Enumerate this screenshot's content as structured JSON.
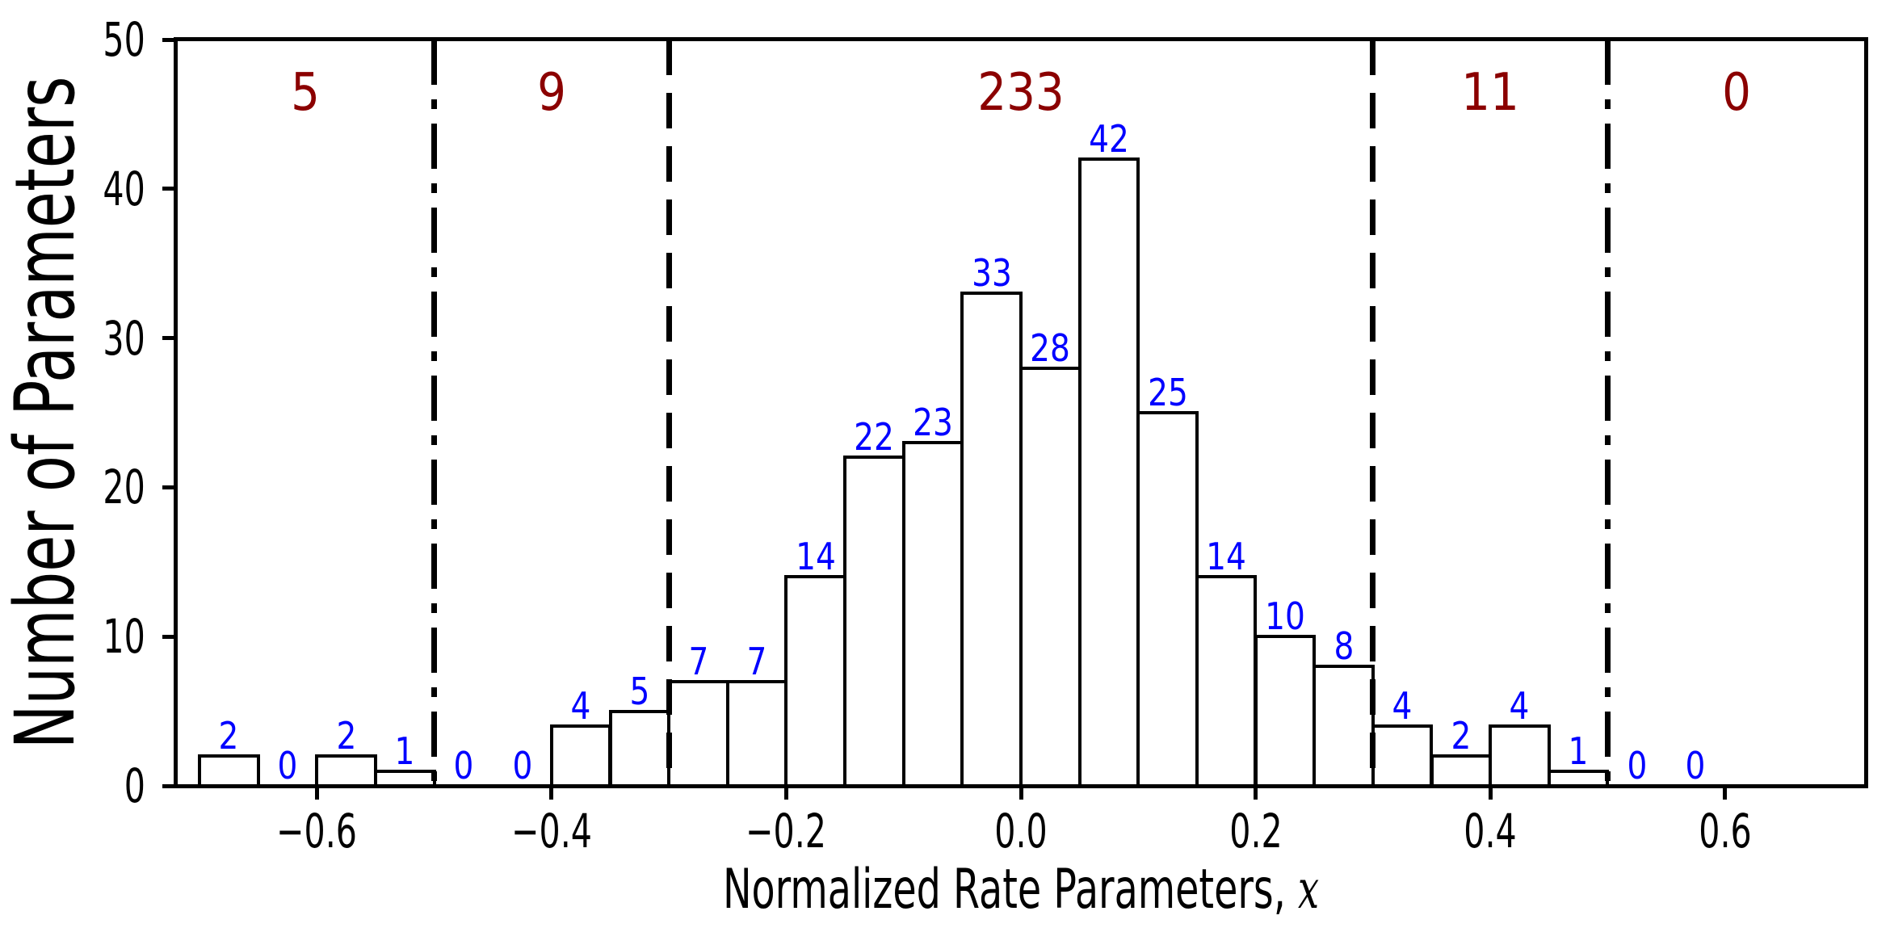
{
  "figure": {
    "background": "#ffffff"
  },
  "chart_data": {
    "type": "bar",
    "subtype": "histogram",
    "title": "",
    "xlabel_text": "Normalized Rate Parameters, ",
    "xlabel_math": "x",
    "ylabel": "Number of Parameters",
    "xlim": [
      -0.72,
      0.72
    ],
    "ylim": [
      0,
      50
    ],
    "grid": false,
    "legend": null,
    "xticks": [
      -0.6,
      -0.4,
      -0.2,
      0.0,
      0.2,
      0.4,
      0.6
    ],
    "xtick_labels": [
      "−0.6",
      "−0.4",
      "−0.2",
      "0.0",
      "0.2",
      "0.4",
      "0.6"
    ],
    "yticks": [
      0,
      10,
      20,
      30,
      40,
      50
    ],
    "ytick_labels": [
      "0",
      "10",
      "20",
      "30",
      "40",
      "50"
    ],
    "bin_start": -0.7,
    "bin_width": 0.05,
    "values": [
      2,
      0,
      2,
      1,
      0,
      0,
      4,
      5,
      7,
      7,
      14,
      22,
      23,
      33,
      28,
      42,
      25,
      14,
      10,
      8,
      4,
      2,
      4,
      1,
      0,
      0
    ],
    "bar_value_labels": [
      "2",
      "0",
      "2",
      "1",
      "0",
      "0",
      "4",
      "5",
      "7",
      "7",
      "14",
      "22",
      "23",
      "33",
      "28",
      "42",
      "25",
      "14",
      "10",
      "8",
      "4",
      "2",
      "4",
      "1",
      "0",
      "0"
    ],
    "bar_fill": "#ffffff",
    "bar_edge_color": "#000000",
    "bar_label_color": "#0000ff",
    "divider_color": "#000000",
    "dividers": [
      {
        "x": -0.5,
        "style": "dashdot"
      },
      {
        "x": -0.3,
        "style": "dashed"
      },
      {
        "x": 0.3,
        "style": "dashed"
      },
      {
        "x": 0.5,
        "style": "dashdot"
      }
    ],
    "region_count_color": "#8b0000",
    "region_counts": [
      {
        "label": "5",
        "x": -0.61
      },
      {
        "label": "9",
        "x": -0.4
      },
      {
        "label": "233",
        "x": 0.0
      },
      {
        "label": "11",
        "x": 0.4
      },
      {
        "label": "0",
        "x": 0.61
      }
    ]
  }
}
